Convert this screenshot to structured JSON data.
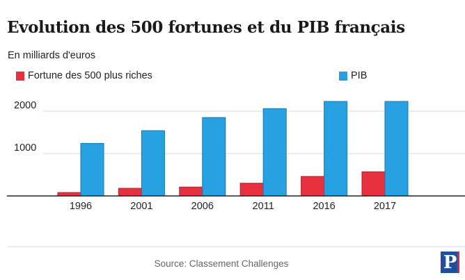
{
  "title": "Evolution des 500 fortunes et du PIB français",
  "subtitle": "En milliards d'euros",
  "source": "Source: Classement Challenges",
  "logo_text": "P",
  "colors": {
    "fortune": "#e8313f",
    "fortune_stroke": "#b51d28",
    "pib": "#27a1e1",
    "pib_stroke": "#1777b0",
    "grid": "#d9d9d9",
    "axis": "#222222",
    "logo": "#1f4da0"
  },
  "chart_data": {
    "type": "bar",
    "title": "Evolution des 500 fortunes et du PIB français",
    "xlabel": "",
    "ylabel": "En milliards d'euros",
    "categories": [
      "1996",
      "2001",
      "2006",
      "2011",
      "2016",
      "2017"
    ],
    "series": [
      {
        "name": "Fortune des 500 plus riches",
        "values": [
          80,
          180,
          210,
          300,
          460,
          570
        ]
      },
      {
        "name": "PIB",
        "values": [
          1240,
          1540,
          1850,
          2060,
          2230,
          2230
        ]
      }
    ],
    "yticks": [
      1000,
      2000
    ],
    "ylim": [
      0,
      2300
    ],
    "grid": true,
    "legend": "top"
  }
}
